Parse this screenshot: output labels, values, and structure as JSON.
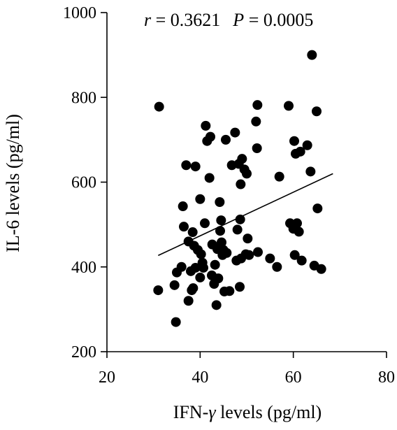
{
  "chart_data": {
    "type": "scatter",
    "xlabel_prefix": "IFN-",
    "xlabel_symbol": "γ",
    "xlabel_suffix": " levels (pg/ml)",
    "ylabel": "IL-6  levels (pg/ml)",
    "xlim": [
      20,
      80
    ],
    "ylim": [
      200,
      1000
    ],
    "xticks": [
      20,
      40,
      60,
      80
    ],
    "yticks": [
      200,
      400,
      600,
      800,
      1000
    ],
    "grid": false,
    "annotation": {
      "r_symbol": "r",
      "r_text": " = 0.3621",
      "p_symbol": "P",
      "p_text": " = 0.0005"
    },
    "trendline": {
      "x": [
        31,
        68.5
      ],
      "y": [
        427,
        620
      ]
    },
    "points": [
      [
        31.2,
        778
      ],
      [
        31,
        345
      ],
      [
        34.5,
        357
      ],
      [
        34.8,
        270
      ],
      [
        35,
        387
      ],
      [
        36,
        400
      ],
      [
        36.3,
        543
      ],
      [
        36.5,
        495
      ],
      [
        37,
        640
      ],
      [
        37.5,
        460
      ],
      [
        37.5,
        320
      ],
      [
        38,
        390
      ],
      [
        38.2,
        345
      ],
      [
        38.4,
        482
      ],
      [
        38.5,
        350
      ],
      [
        38.7,
        450
      ],
      [
        39,
        637
      ],
      [
        39,
        398
      ],
      [
        39.5,
        440
      ],
      [
        40,
        560
      ],
      [
        40,
        375
      ],
      [
        40.2,
        430
      ],
      [
        40.5,
        410
      ],
      [
        40.7,
        398
      ],
      [
        41,
        503
      ],
      [
        41.2,
        733
      ],
      [
        41.5,
        697
      ],
      [
        42,
        610
      ],
      [
        42.2,
        707
      ],
      [
        42.5,
        380
      ],
      [
        42.6,
        453
      ],
      [
        43,
        360
      ],
      [
        43.2,
        405
      ],
      [
        43.5,
        310
      ],
      [
        43.7,
        442
      ],
      [
        43.9,
        373
      ],
      [
        44.2,
        553
      ],
      [
        44.3,
        485
      ],
      [
        44.4,
        445
      ],
      [
        44.5,
        510
      ],
      [
        44.6,
        458
      ],
      [
        44.8,
        428
      ],
      [
        45,
        440
      ],
      [
        45.2,
        342
      ],
      [
        45.5,
        700
      ],
      [
        45.7,
        433
      ],
      [
        46.3,
        343
      ],
      [
        46.8,
        640
      ],
      [
        47.5,
        717
      ],
      [
        47.8,
        415
      ],
      [
        48,
        488
      ],
      [
        48.3,
        643
      ],
      [
        48.5,
        353
      ],
      [
        48.6,
        512
      ],
      [
        48.7,
        595
      ],
      [
        48.8,
        420
      ],
      [
        49,
        655
      ],
      [
        49.5,
        630
      ],
      [
        49.8,
        430
      ],
      [
        50,
        620
      ],
      [
        50.2,
        467
      ],
      [
        50.5,
        428
      ],
      [
        52,
        743
      ],
      [
        52.2,
        680
      ],
      [
        52.3,
        782
      ],
      [
        52.4,
        435
      ],
      [
        55,
        420
      ],
      [
        56.5,
        400
      ],
      [
        57,
        613
      ],
      [
        59,
        780
      ],
      [
        59.3,
        503
      ],
      [
        60,
        490
      ],
      [
        60.2,
        697
      ],
      [
        60.3,
        428
      ],
      [
        60.5,
        667
      ],
      [
        60.8,
        503
      ],
      [
        61.2,
        483
      ],
      [
        61.5,
        672
      ],
      [
        61.8,
        415
      ],
      [
        63,
        687
      ],
      [
        63.7,
        625
      ],
      [
        64,
        900
      ],
      [
        64.5,
        403
      ],
      [
        65,
        767
      ],
      [
        65.2,
        538
      ],
      [
        66,
        395
      ]
    ]
  }
}
